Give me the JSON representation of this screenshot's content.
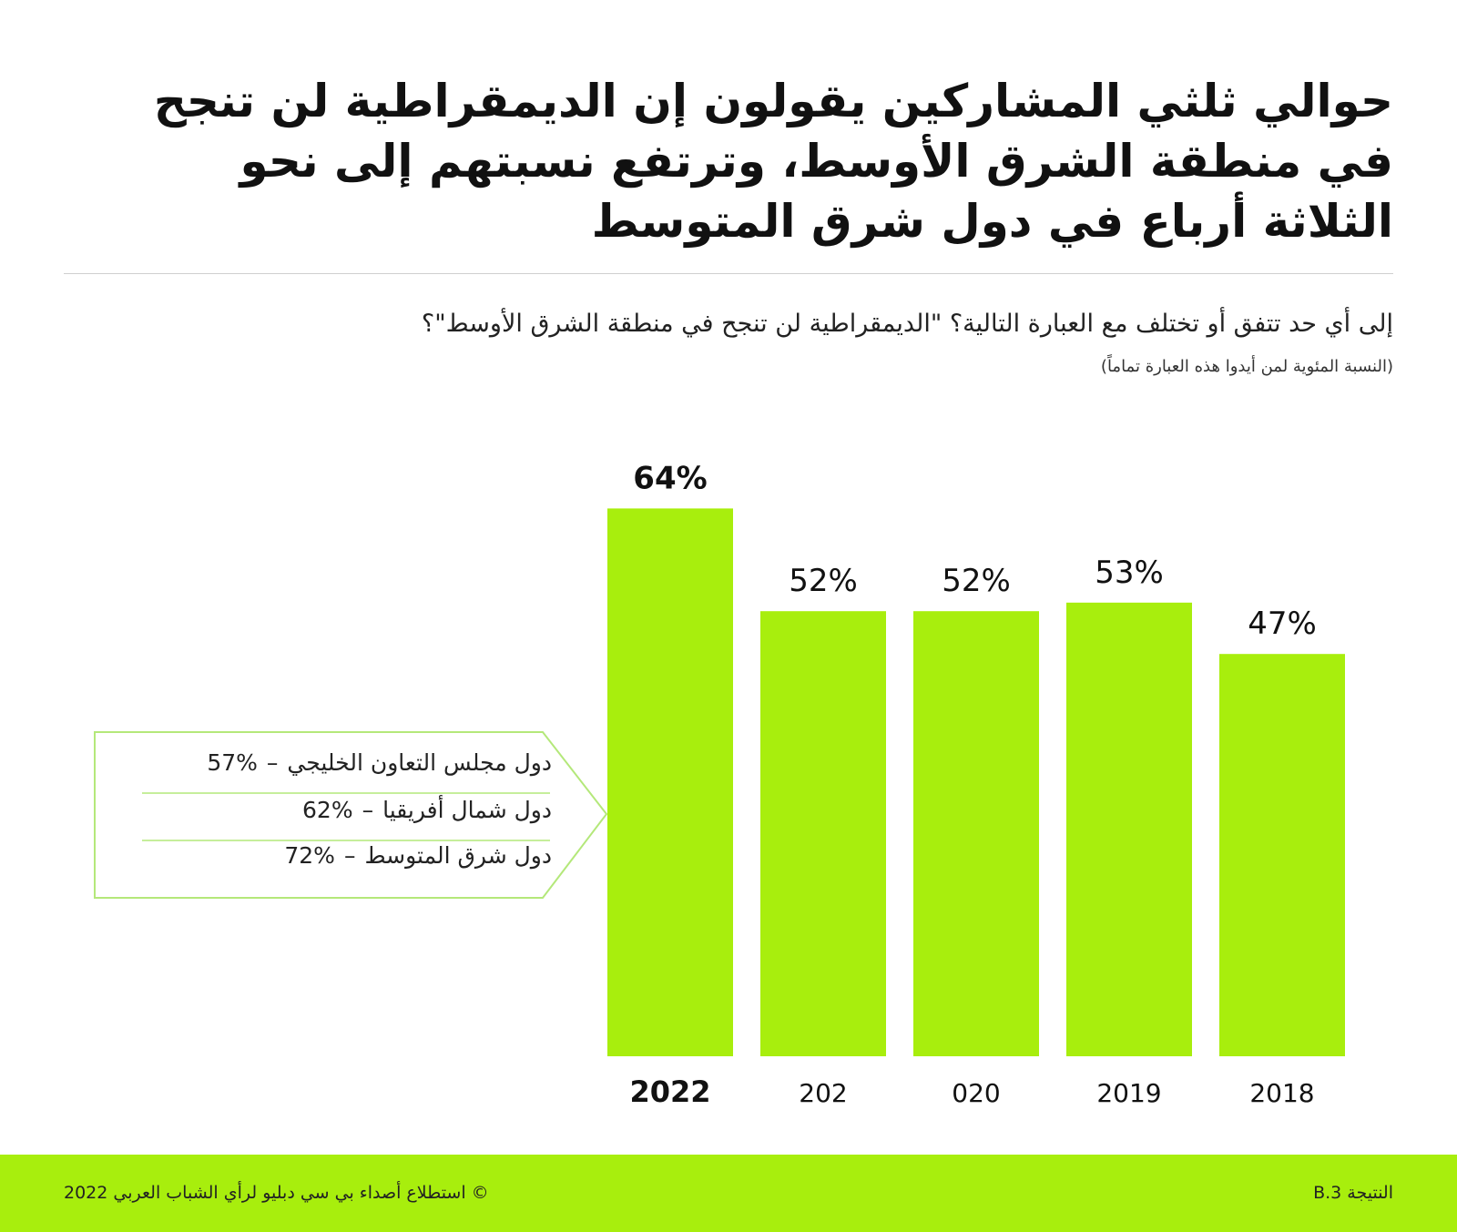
{
  "header": {
    "title": "حوالي ثلثي المشاركين يقولون إن الديمقراطية لن تنجح في منطقة الشرق الأوسط، وترتفع نسبتهم إلى نحو الثلاثة أرباع في دول شرق المتوسط",
    "question": "إلى أي حد تتفق أو تختلف مع العبارة التالية؟ \"الديمقراطية لن تنجح في منطقة الشرق الأوسط\"؟",
    "note": "(النسبة المئوية لمن أيدوا هذه العبارة تماماً)"
  },
  "chart_data": {
    "type": "bar",
    "title": "",
    "xlabel": "",
    "ylabel": "",
    "ylim": [
      0,
      100
    ],
    "grid": false,
    "categories": [
      "2022",
      "202",
      "020",
      "2019",
      "2018"
    ],
    "values": [
      64,
      52,
      52,
      53,
      47
    ],
    "data_labels": [
      "64%",
      "52%",
      "52%",
      "53%",
      "47%"
    ],
    "highlight_index": 0
  },
  "callout": {
    "rows": [
      {
        "label": "دول مجلس التعاون الخليجي",
        "value": "57%"
      },
      {
        "label": "دول شمال أفريقيا",
        "value": "62%"
      },
      {
        "label": "دول شرق المتوسط",
        "value": "72%"
      }
    ]
  },
  "footer": {
    "result": "النتيجة B.3",
    "source": "© استطلاع أصداء بي سي دبليو لرأي الشباب العربي 2022"
  },
  "colors": {
    "bar": "#a8ee0d",
    "footer_bg": "#a8ee0d",
    "callout_border": "#b4e87a",
    "text": "#111111"
  }
}
